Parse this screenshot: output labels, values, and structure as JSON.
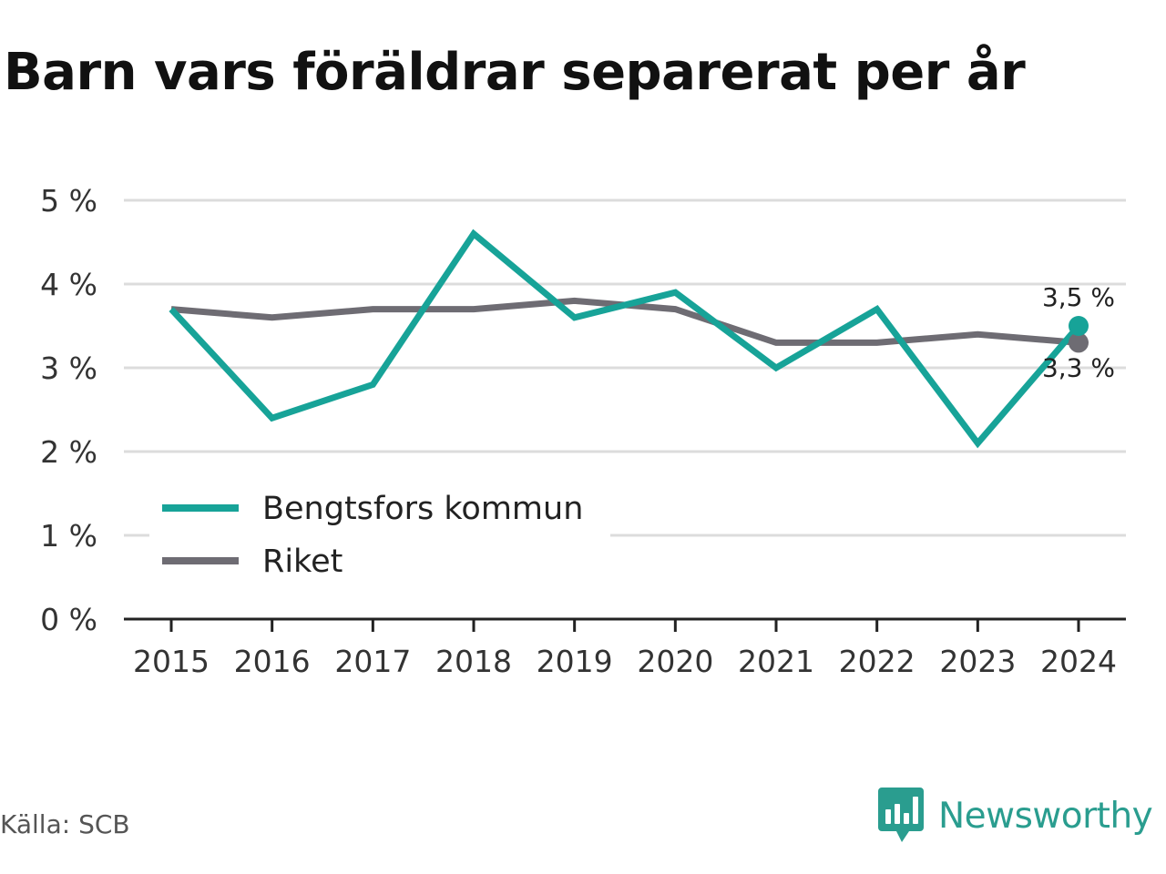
{
  "chart_data": {
    "type": "line",
    "title": "Barn vars föräldrar separerat per år",
    "xlabel": "",
    "ylabel": "",
    "categories": [
      "2015",
      "2016",
      "2017",
      "2018",
      "2019",
      "2020",
      "2021",
      "2022",
      "2023",
      "2024"
    ],
    "ylim": [
      0,
      5
    ],
    "yticks": [
      0,
      1,
      2,
      3,
      4,
      5
    ],
    "ytick_labels": [
      "0 %",
      "1 %",
      "2 %",
      "3 %",
      "4 %",
      "5 %"
    ],
    "grid": true,
    "legend_position": "bottom-left",
    "series": [
      {
        "name": "Bengtsfors kommun",
        "color": "#17a398",
        "values": [
          3.7,
          2.4,
          2.8,
          4.6,
          3.6,
          3.9,
          3.0,
          3.7,
          2.1,
          3.5
        ],
        "end_label": "3,5 %"
      },
      {
        "name": "Riket",
        "color": "#6e6c73",
        "values": [
          3.7,
          3.6,
          3.7,
          3.7,
          3.8,
          3.7,
          3.3,
          3.3,
          3.4,
          3.3
        ],
        "end_label": "3,3 %"
      }
    ]
  },
  "footer": {
    "source": "Källa: SCB",
    "brand": "Newsworthy",
    "brand_icon": "newsworthy-chart-bubble-icon",
    "brand_color": "#2a9d8f"
  }
}
